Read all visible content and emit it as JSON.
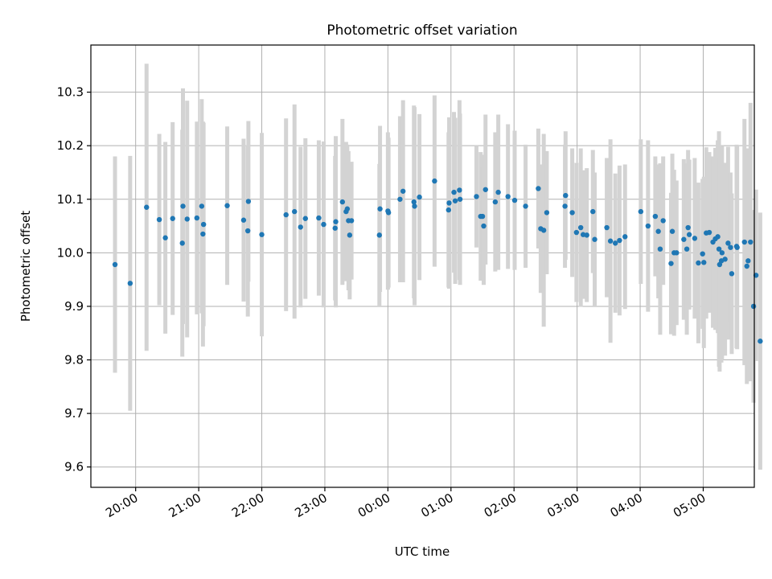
{
  "chart_data": {
    "type": "scatter",
    "title": "Photometric offset variation",
    "xlabel": "UTC time",
    "ylabel": "Photometric offset",
    "grid": true,
    "legend": "none",
    "x_unit": "hours since 19:00 UTC",
    "xlim": [
      0.29,
      10.81
    ],
    "ylim": [
      9.562,
      10.388
    ],
    "xticks": [
      {
        "label": "20:00",
        "value": 1
      },
      {
        "label": "21:00",
        "value": 2
      },
      {
        "label": "22:00",
        "value": 3
      },
      {
        "label": "23:00",
        "value": 4
      },
      {
        "label": "00:00",
        "value": 5
      },
      {
        "label": "01:00",
        "value": 6
      },
      {
        "label": "02:00",
        "value": 7
      },
      {
        "label": "03:00",
        "value": 8
      },
      {
        "label": "04:00",
        "value": 9
      },
      {
        "label": "05:00",
        "value": 10
      }
    ],
    "yticks": [
      {
        "label": "9.6",
        "value": 9.6
      },
      {
        "label": "9.7",
        "value": 9.7
      },
      {
        "label": "9.8",
        "value": 9.8
      },
      {
        "label": "9.9",
        "value": 9.9
      },
      {
        "label": "10.0",
        "value": 10.0
      },
      {
        "label": "10.1",
        "value": 10.1
      },
      {
        "label": "10.2",
        "value": 10.2
      },
      {
        "label": "10.3",
        "value": 10.3
      }
    ],
    "colors": {
      "points": "#1f77b4",
      "errorbars": "#d3d3d3",
      "grid": "#b0b0b0"
    },
    "series": [
      {
        "name": "Photometric offset",
        "points": [
          [
            0.673,
            9.978,
            0.202
          ],
          [
            0.913,
            9.943,
            0.238
          ],
          [
            1.173,
            10.085,
            0.268
          ],
          [
            1.375,
            10.062,
            0.16
          ],
          [
            1.471,
            10.028,
            0.179
          ],
          [
            1.587,
            10.064,
            0.18
          ],
          [
            1.74,
            10.018,
            0.212
          ],
          [
            1.75,
            10.087,
            0.22
          ],
          [
            1.817,
            10.063,
            0.221
          ],
          [
            1.971,
            10.065,
            0.18
          ],
          [
            2.048,
            10.087,
            0.2
          ],
          [
            2.067,
            10.035,
            0.21
          ],
          [
            2.077,
            10.053,
            0.19
          ],
          [
            2.452,
            10.088,
            0.148
          ],
          [
            2.712,
            10.061,
            0.152
          ],
          [
            2.779,
            10.041,
            0.16
          ],
          [
            2.788,
            10.096,
            0.15
          ],
          [
            3.0,
            10.034,
            0.19
          ],
          [
            3.385,
            10.071,
            0.18
          ],
          [
            3.519,
            10.077,
            0.2
          ],
          [
            3.615,
            10.048,
            0.15
          ],
          [
            3.692,
            10.064,
            0.15
          ],
          [
            3.904,
            10.065,
            0.145
          ],
          [
            3.981,
            10.053,
            0.155
          ],
          [
            4.163,
            10.046,
            0.135
          ],
          [
            4.173,
            10.058,
            0.16
          ],
          [
            4.279,
            10.095,
            0.155
          ],
          [
            4.337,
            10.077,
            0.13
          ],
          [
            4.356,
            10.082,
            0.12
          ],
          [
            4.375,
            10.06,
            0.13
          ],
          [
            4.394,
            10.033,
            0.12
          ],
          [
            4.423,
            10.06,
            0.11
          ],
          [
            4.865,
            10.033,
            0.133
          ],
          [
            4.875,
            10.082,
            0.155
          ],
          [
            5.0,
            10.078,
            0.147
          ],
          [
            5.01,
            10.075,
            0.14
          ],
          [
            5.192,
            10.1,
            0.155
          ],
          [
            5.24,
            10.115,
            0.17
          ],
          [
            5.413,
            10.095,
            0.18
          ],
          [
            5.423,
            10.087,
            0.185
          ],
          [
            5.5,
            10.104,
            0.155
          ],
          [
            5.74,
            10.134,
            0.16
          ],
          [
            5.962,
            10.08,
            0.145
          ],
          [
            5.971,
            10.093,
            0.16
          ],
          [
            6.048,
            10.113,
            0.15
          ],
          [
            6.067,
            10.097,
            0.155
          ],
          [
            6.135,
            10.117,
            0.168
          ],
          [
            6.144,
            10.1,
            0.16
          ],
          [
            6.404,
            10.105,
            0.095
          ],
          [
            6.471,
            10.068,
            0.12
          ],
          [
            6.5,
            10.068,
            0.115
          ],
          [
            6.519,
            10.05,
            0.11
          ],
          [
            6.548,
            10.118,
            0.14
          ],
          [
            6.702,
            10.095,
            0.13
          ],
          [
            6.75,
            10.113,
            0.145
          ],
          [
            6.904,
            10.105,
            0.135
          ],
          [
            7.01,
            10.098,
            0.13
          ],
          [
            7.183,
            10.087,
            0.115
          ],
          [
            7.385,
            10.12,
            0.112
          ],
          [
            7.423,
            10.045,
            0.12
          ],
          [
            7.471,
            10.042,
            0.18
          ],
          [
            7.519,
            10.075,
            0.115
          ],
          [
            7.808,
            10.087,
            0.115
          ],
          [
            7.817,
            10.107,
            0.12
          ],
          [
            7.923,
            10.075,
            0.12
          ],
          [
            7.99,
            10.038,
            0.13
          ],
          [
            8.058,
            10.047,
            0.148
          ],
          [
            8.096,
            10.034,
            0.12
          ],
          [
            8.154,
            10.033,
            0.125
          ],
          [
            8.25,
            10.077,
            0.115
          ],
          [
            8.279,
            10.025,
            0.125
          ],
          [
            8.471,
            10.047,
            0.13
          ],
          [
            8.529,
            10.022,
            0.19
          ],
          [
            8.606,
            10.018,
            0.13
          ],
          [
            8.673,
            10.023,
            0.14
          ],
          [
            8.76,
            10.03,
            0.135
          ],
          [
            9.01,
            10.077,
            0.135
          ],
          [
            9.125,
            10.05,
            0.16
          ],
          [
            9.24,
            10.068,
            0.112
          ],
          [
            9.288,
            10.04,
            0.125
          ],
          [
            9.317,
            10.007,
            0.16
          ],
          [
            9.365,
            10.06,
            0.12
          ],
          [
            9.49,
            9.98,
            0.132
          ],
          [
            9.51,
            10.04,
            0.145
          ],
          [
            9.538,
            10.0,
            0.155
          ],
          [
            9.577,
            10.0,
            0.135
          ],
          [
            9.692,
            10.025,
            0.15
          ],
          [
            9.74,
            10.007,
            0.16
          ],
          [
            9.76,
            10.047,
            0.145
          ],
          [
            9.779,
            10.034,
            0.14
          ],
          [
            9.865,
            10.027,
            0.15
          ],
          [
            9.923,
            9.981,
            0.15
          ],
          [
            9.99,
            9.998,
            0.14
          ],
          [
            10.01,
            9.982,
            0.16
          ],
          [
            10.048,
            10.037,
            0.16
          ],
          [
            10.096,
            10.038,
            0.15
          ],
          [
            10.154,
            10.02,
            0.16
          ],
          [
            10.192,
            10.026,
            0.17
          ],
          [
            10.231,
            10.03,
            0.18
          ],
          [
            10.25,
            10.007,
            0.22
          ],
          [
            10.26,
            9.978,
            0.2
          ],
          [
            10.288,
            9.985,
            0.19
          ],
          [
            10.298,
            10.0,
            0.2
          ],
          [
            10.346,
            9.988,
            0.18
          ],
          [
            10.394,
            10.018,
            0.18
          ],
          [
            10.433,
            10.01,
            0.14
          ],
          [
            10.452,
            9.961,
            0.15
          ],
          [
            10.529,
            10.012,
            0.19
          ],
          [
            10.538,
            10.01,
            0.19
          ],
          [
            10.654,
            10.02,
            0.23
          ],
          [
            10.692,
            9.975,
            0.22
          ],
          [
            10.712,
            9.985,
            0.2
          ],
          [
            10.75,
            10.02,
            0.26
          ],
          [
            10.798,
            9.9,
            0.18
          ],
          [
            10.837,
            9.958,
            0.16
          ],
          [
            10.904,
            9.835,
            0.24
          ]
        ]
      }
    ]
  }
}
